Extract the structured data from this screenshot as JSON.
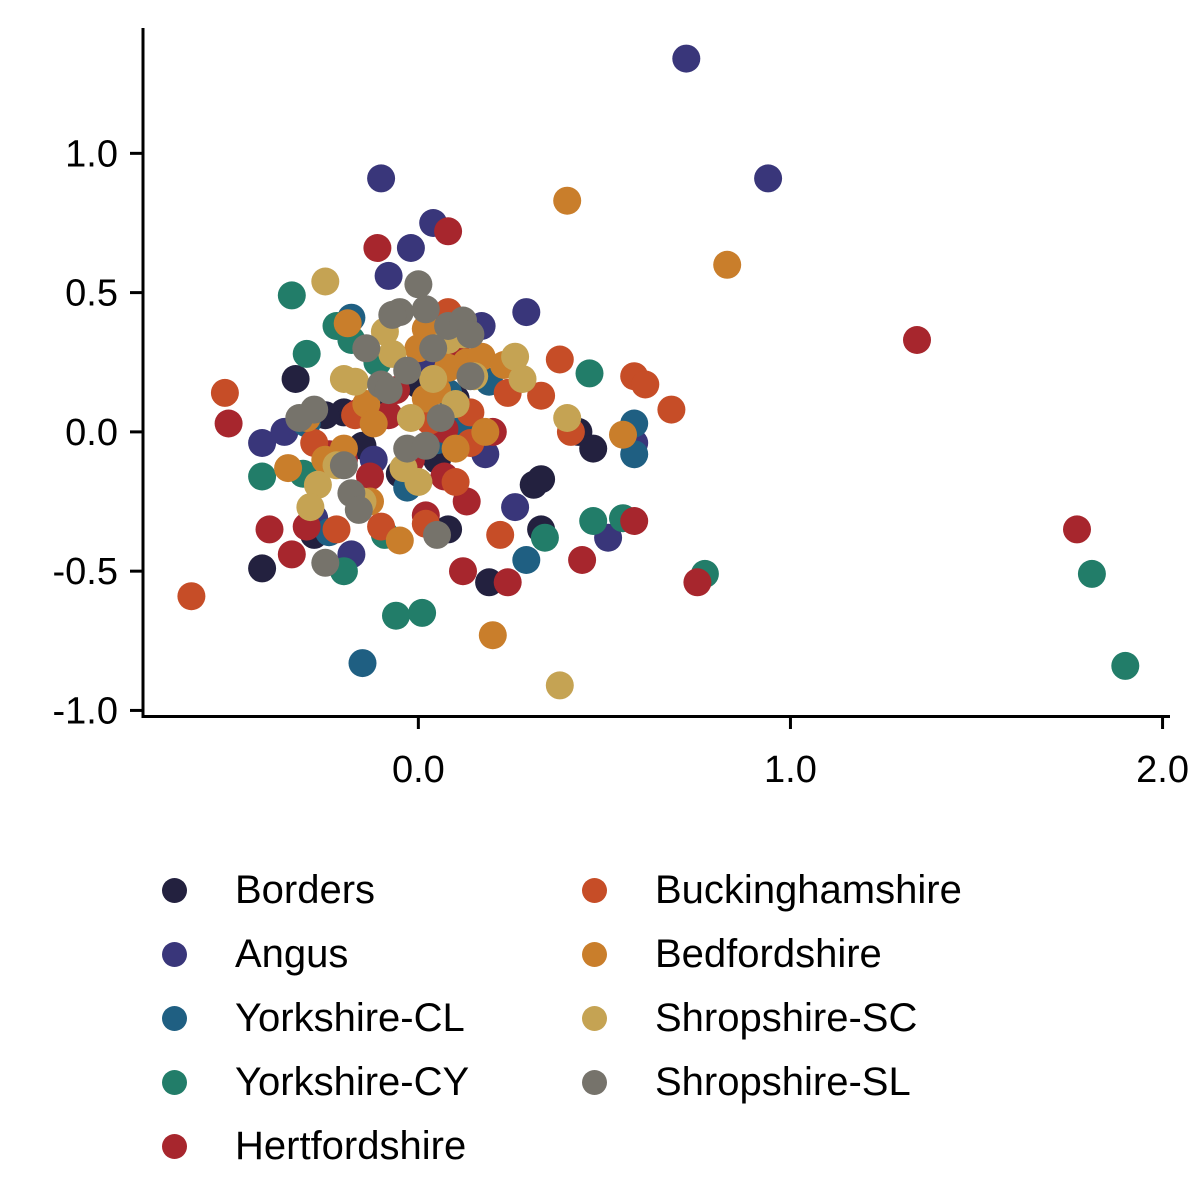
{
  "chart_data": {
    "type": "scatter",
    "title": "",
    "xlabel": "",
    "ylabel": "",
    "xlim": [
      -0.74,
      2.02
    ],
    "ylim": [
      -1.02,
      1.45
    ],
    "x_ticks": [
      0.0,
      1.0,
      2.0
    ],
    "x_tick_labels": [
      "0.0",
      "1.0",
      "2.0"
    ],
    "y_ticks": [
      -1.0,
      -0.5,
      0.0,
      0.5,
      1.0
    ],
    "y_tick_labels": [
      "-1.0",
      "-0.5",
      "0.0",
      "0.5",
      "1.0"
    ],
    "grid": false,
    "legend_position": "bottom",
    "series": [
      {
        "name": "Borders",
        "color": "#23213f",
        "points": [
          [
            -0.33,
            0.19
          ],
          [
            -0.42,
            -0.49
          ],
          [
            -0.28,
            -0.37
          ],
          [
            0.19,
            -0.54
          ],
          [
            0.31,
            -0.19
          ],
          [
            0.33,
            -0.17
          ],
          [
            0.33,
            -0.35
          ],
          [
            0.43,
            0.0
          ],
          [
            0.47,
            -0.06
          ],
          [
            0.08,
            -0.35
          ],
          [
            -0.2,
            0.07
          ],
          [
            -0.1,
            0.1
          ],
          [
            0.05,
            -0.1
          ],
          [
            -0.15,
            -0.05
          ],
          [
            0.1,
            0.12
          ],
          [
            -0.25,
            0.06
          ],
          [
            0.0,
            0.17
          ],
          [
            -0.05,
            -0.15
          ]
        ]
      },
      {
        "name": "Angus",
        "color": "#39367a",
        "points": [
          [
            0.72,
            1.34
          ],
          [
            0.94,
            0.91
          ],
          [
            -0.1,
            0.91
          ],
          [
            0.04,
            0.75
          ],
          [
            -0.02,
            0.66
          ],
          [
            -0.08,
            0.56
          ],
          [
            0.29,
            0.43
          ],
          [
            -0.42,
            -0.04
          ],
          [
            -0.36,
            0.0
          ],
          [
            0.17,
            0.38
          ],
          [
            0.18,
            -0.08
          ],
          [
            0.26,
            -0.27
          ],
          [
            0.51,
            -0.38
          ],
          [
            0.58,
            -0.04
          ],
          [
            -0.18,
            -0.44
          ],
          [
            -0.28,
            -0.31
          ],
          [
            0.1,
            0.0
          ],
          [
            -0.12,
            -0.1
          ],
          [
            0.02,
            0.25
          ]
        ]
      },
      {
        "name": "Yorkshire-CL",
        "color": "#1f5f82",
        "points": [
          [
            -0.15,
            -0.83
          ],
          [
            0.29,
            -0.46
          ],
          [
            0.58,
            0.03
          ],
          [
            0.58,
            -0.08
          ],
          [
            -0.03,
            -0.2
          ],
          [
            -0.18,
            0.41
          ],
          [
            0.19,
            0.18
          ],
          [
            -0.24,
            -0.36
          ],
          [
            0.08,
            0.14
          ],
          [
            0.12,
            0.02
          ],
          [
            -0.3,
            0.03
          ],
          [
            0.05,
            -0.03
          ]
        ]
      },
      {
        "name": "Yorkshire-CY",
        "color": "#227d69",
        "points": [
          [
            1.9,
            -0.84
          ],
          [
            1.81,
            -0.51
          ],
          [
            0.77,
            -0.51
          ],
          [
            -0.34,
            0.49
          ],
          [
            -0.3,
            0.28
          ],
          [
            -0.22,
            0.38
          ],
          [
            0.46,
            0.21
          ],
          [
            0.47,
            -0.32
          ],
          [
            0.55,
            -0.31
          ],
          [
            0.34,
            -0.38
          ],
          [
            -0.06,
            -0.66
          ],
          [
            0.01,
            -0.65
          ],
          [
            -0.2,
            -0.5
          ],
          [
            -0.42,
            -0.16
          ],
          [
            -0.09,
            -0.37
          ],
          [
            -0.31,
            -0.15
          ],
          [
            -0.11,
            0.25
          ],
          [
            -0.18,
            0.33
          ]
        ]
      },
      {
        "name": "Hertfordshire",
        "color": "#a7262d",
        "points": [
          [
            1.34,
            0.33
          ],
          [
            1.77,
            -0.35
          ],
          [
            0.75,
            -0.54
          ],
          [
            0.58,
            -0.32
          ],
          [
            0.44,
            -0.46
          ],
          [
            0.24,
            -0.54
          ],
          [
            0.12,
            -0.5
          ],
          [
            0.08,
            0.72
          ],
          [
            -0.11,
            0.66
          ],
          [
            -0.51,
            0.03
          ],
          [
            -0.4,
            -0.35
          ],
          [
            -0.34,
            -0.44
          ],
          [
            -0.3,
            -0.34
          ],
          [
            0.13,
            -0.25
          ],
          [
            0.07,
            -0.16
          ],
          [
            -0.02,
            -0.1
          ],
          [
            0.07,
            0.01
          ],
          [
            -0.13,
            -0.16
          ],
          [
            -0.24,
            -0.08
          ],
          [
            -0.16,
            0.07
          ],
          [
            -0.08,
            0.06
          ],
          [
            0.02,
            -0.3
          ],
          [
            0.1,
            0.3
          ],
          [
            0.2,
            0.0
          ],
          [
            -0.2,
            -0.1
          ],
          [
            -0.06,
            0.15
          ]
        ]
      },
      {
        "name": "Buckinghamshire",
        "color": "#c64d27",
        "points": [
          [
            -0.61,
            -0.59
          ],
          [
            -0.52,
            0.14
          ],
          [
            0.41,
            -0.0
          ],
          [
            0.38,
            0.26
          ],
          [
            0.33,
            0.13
          ],
          [
            0.58,
            0.2
          ],
          [
            0.61,
            0.17
          ],
          [
            0.68,
            0.08
          ],
          [
            0.22,
            -0.37
          ],
          [
            0.02,
            -0.33
          ],
          [
            0.08,
            0.43
          ],
          [
            -0.22,
            -0.35
          ],
          [
            0.24,
            0.14
          ],
          [
            -0.28,
            -0.04
          ],
          [
            0.14,
            -0.04
          ],
          [
            0.1,
            -0.18
          ],
          [
            0.14,
            0.07
          ],
          [
            0.03,
            0.04
          ],
          [
            -0.17,
            0.06
          ],
          [
            -0.1,
            -0.34
          ],
          [
            0.05,
            0.3
          ]
        ]
      },
      {
        "name": "Bedfordshire",
        "color": "#c97e2b",
        "points": [
          [
            0.4,
            0.83
          ],
          [
            0.83,
            0.6
          ],
          [
            0.55,
            -0.01
          ],
          [
            0.2,
            -0.73
          ],
          [
            -0.05,
            -0.39
          ],
          [
            -0.13,
            -0.25
          ],
          [
            -0.35,
            -0.13
          ],
          [
            -0.3,
            0.05
          ],
          [
            -0.19,
            0.39
          ],
          [
            0.13,
            0.25
          ],
          [
            0.17,
            0.27
          ],
          [
            0.02,
            0.37
          ],
          [
            0.0,
            0.3
          ],
          [
            -0.14,
            0.1
          ],
          [
            0.08,
            0.23
          ],
          [
            0.05,
            0.15
          ],
          [
            0.02,
            0.12
          ],
          [
            0.18,
            0.0
          ],
          [
            0.23,
            0.24
          ],
          [
            -0.2,
            -0.06
          ],
          [
            -0.25,
            -0.1
          ],
          [
            0.1,
            -0.06
          ],
          [
            -0.12,
            0.03
          ]
        ]
      },
      {
        "name": "Shropshire-SC",
        "color": "#c5a353",
        "points": [
          [
            0.38,
            -0.91
          ],
          [
            -0.25,
            0.54
          ],
          [
            0.26,
            0.27
          ],
          [
            0.28,
            0.19
          ],
          [
            0.4,
            0.05
          ],
          [
            -0.2,
            0.19
          ],
          [
            -0.22,
            -0.12
          ],
          [
            -0.27,
            -0.19
          ],
          [
            -0.29,
            -0.27
          ],
          [
            -0.09,
            0.36
          ],
          [
            -0.07,
            0.28
          ],
          [
            0.1,
            0.1
          ],
          [
            0.15,
            0.2
          ],
          [
            0.04,
            0.19
          ],
          [
            -0.04,
            -0.13
          ],
          [
            0.12,
            0.35
          ],
          [
            0.0,
            -0.18
          ],
          [
            -0.17,
            0.18
          ],
          [
            -0.15,
            -0.25
          ],
          [
            0.08,
            0.33
          ],
          [
            -0.02,
            0.05
          ]
        ]
      },
      {
        "name": "Shropshire-SL",
        "color": "#76736b",
        "points": [
          [
            0.0,
            0.53
          ],
          [
            -0.05,
            0.43
          ],
          [
            0.02,
            0.44
          ],
          [
            0.08,
            0.38
          ],
          [
            0.12,
            0.4
          ],
          [
            0.14,
            0.35
          ],
          [
            0.04,
            0.3
          ],
          [
            -0.07,
            0.42
          ],
          [
            -0.14,
            0.3
          ],
          [
            -0.1,
            0.17
          ],
          [
            -0.03,
            0.22
          ],
          [
            0.05,
            -0.37
          ],
          [
            -0.25,
            -0.47
          ],
          [
            -0.18,
            -0.22
          ],
          [
            -0.16,
            -0.28
          ],
          [
            -0.03,
            -0.06
          ],
          [
            0.14,
            0.2
          ],
          [
            -0.28,
            0.08
          ],
          [
            -0.32,
            0.05
          ],
          [
            -0.08,
            0.15
          ],
          [
            0.06,
            0.05
          ],
          [
            -0.2,
            -0.12
          ],
          [
            0.02,
            -0.05
          ]
        ]
      }
    ]
  }
}
